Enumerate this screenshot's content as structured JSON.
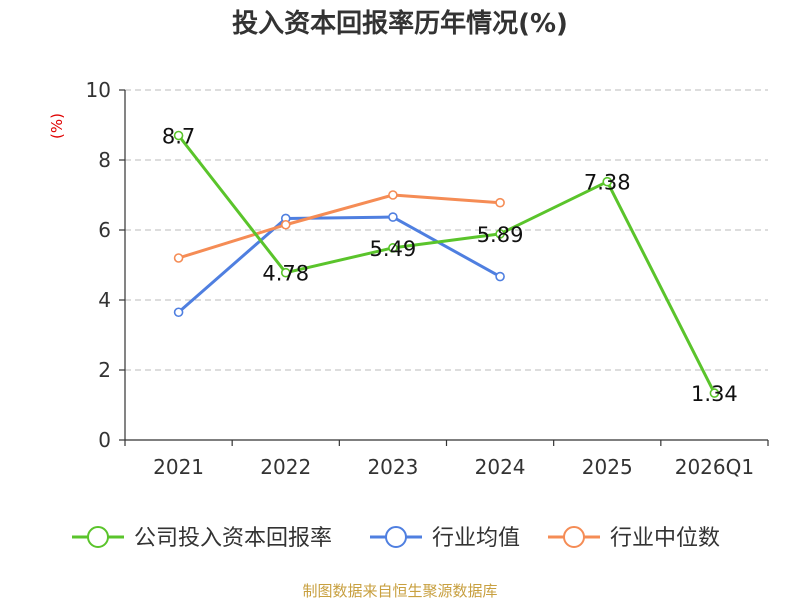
{
  "chart_data": {
    "type": "line",
    "title": "投入资本回报率历年情况(%)",
    "ylabel": "(%)",
    "xlabel": "",
    "categories": [
      "2021",
      "2022",
      "2023",
      "2024",
      "2025",
      "2026Q1"
    ],
    "ylim": [
      0,
      10
    ],
    "yticks": [
      0,
      2,
      4,
      6,
      8,
      10
    ],
    "grid": true,
    "legend_position": "bottom",
    "series": [
      {
        "name": "公司投入资本回报率",
        "color": "#5ac42b",
        "values": [
          8.7,
          4.78,
          5.49,
          5.89,
          7.38,
          1.34
        ],
        "labels": [
          "8.7",
          "4.78",
          "5.49",
          "5.89",
          "7.38",
          "1.34"
        ]
      },
      {
        "name": "行业均值",
        "color": "#4f7fe0",
        "values": [
          3.65,
          6.33,
          6.37,
          4.67,
          null,
          null
        ],
        "labels": []
      },
      {
        "name": "行业中位数",
        "color": "#f58c55",
        "values": [
          5.2,
          6.15,
          7.0,
          6.78,
          null,
          null
        ],
        "labels": []
      }
    ]
  },
  "footer": {
    "source": "制图数据来自恒生聚源数据库"
  }
}
